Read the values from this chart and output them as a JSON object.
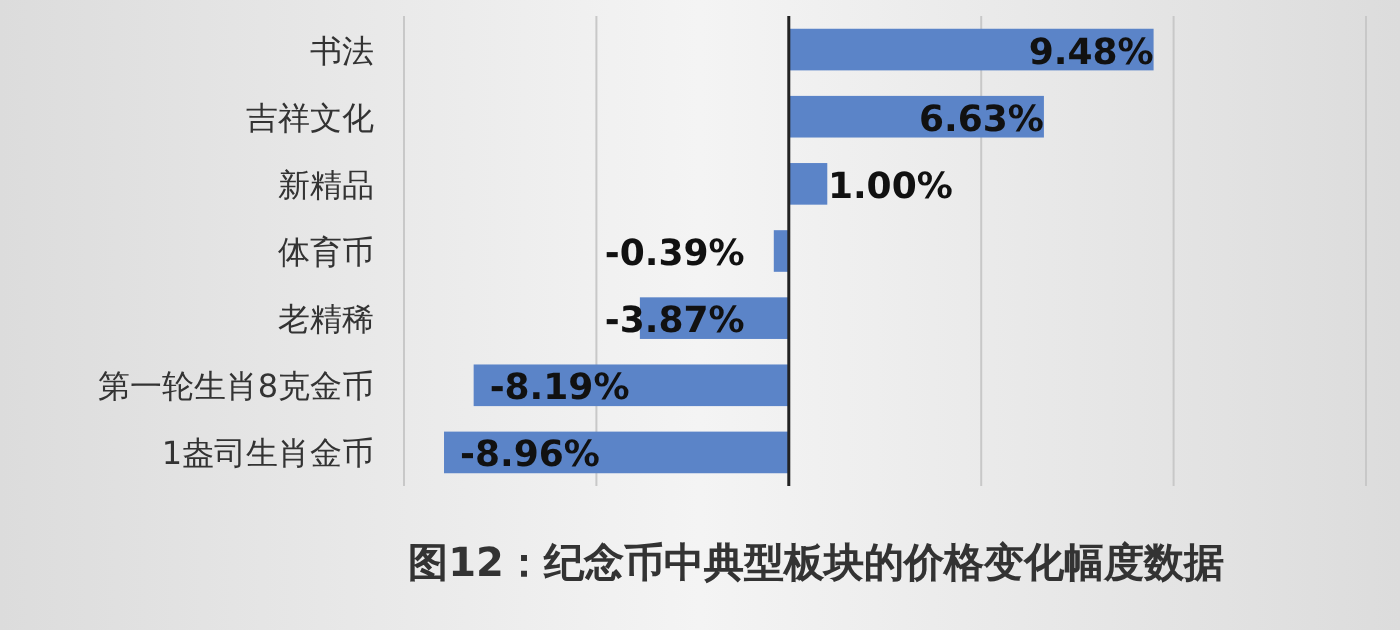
{
  "chart_data": {
    "type": "bar",
    "orientation": "horizontal",
    "title": "图12：纪念币中典型板块的价格变化幅度数据",
    "categories": [
      "书法",
      "吉祥文化",
      "新精品",
      "体育币",
      "老精稀",
      "第一轮生肖8克金币",
      "1盎司生肖金币"
    ],
    "values": [
      9.48,
      6.63,
      1.0,
      -0.39,
      -3.87,
      -8.19,
      -8.96
    ],
    "value_labels": [
      "9.48%",
      "6.63%",
      "1.00%",
      "-0.39%",
      "-3.87%",
      "-8.19%",
      "-8.96%"
    ],
    "color": "#5b84c8",
    "xlim": [
      -10,
      15
    ],
    "xticks": [
      {
        "value": -10,
        "label": null
      },
      {
        "value": -5,
        "label": null
      },
      {
        "value": 0,
        "label": null
      },
      {
        "value": 5,
        "label": null
      },
      {
        "value": 10,
        "label": null
      },
      {
        "value": 15,
        "label": null
      }
    ],
    "grid": "x",
    "tick_labels": "y"
  }
}
